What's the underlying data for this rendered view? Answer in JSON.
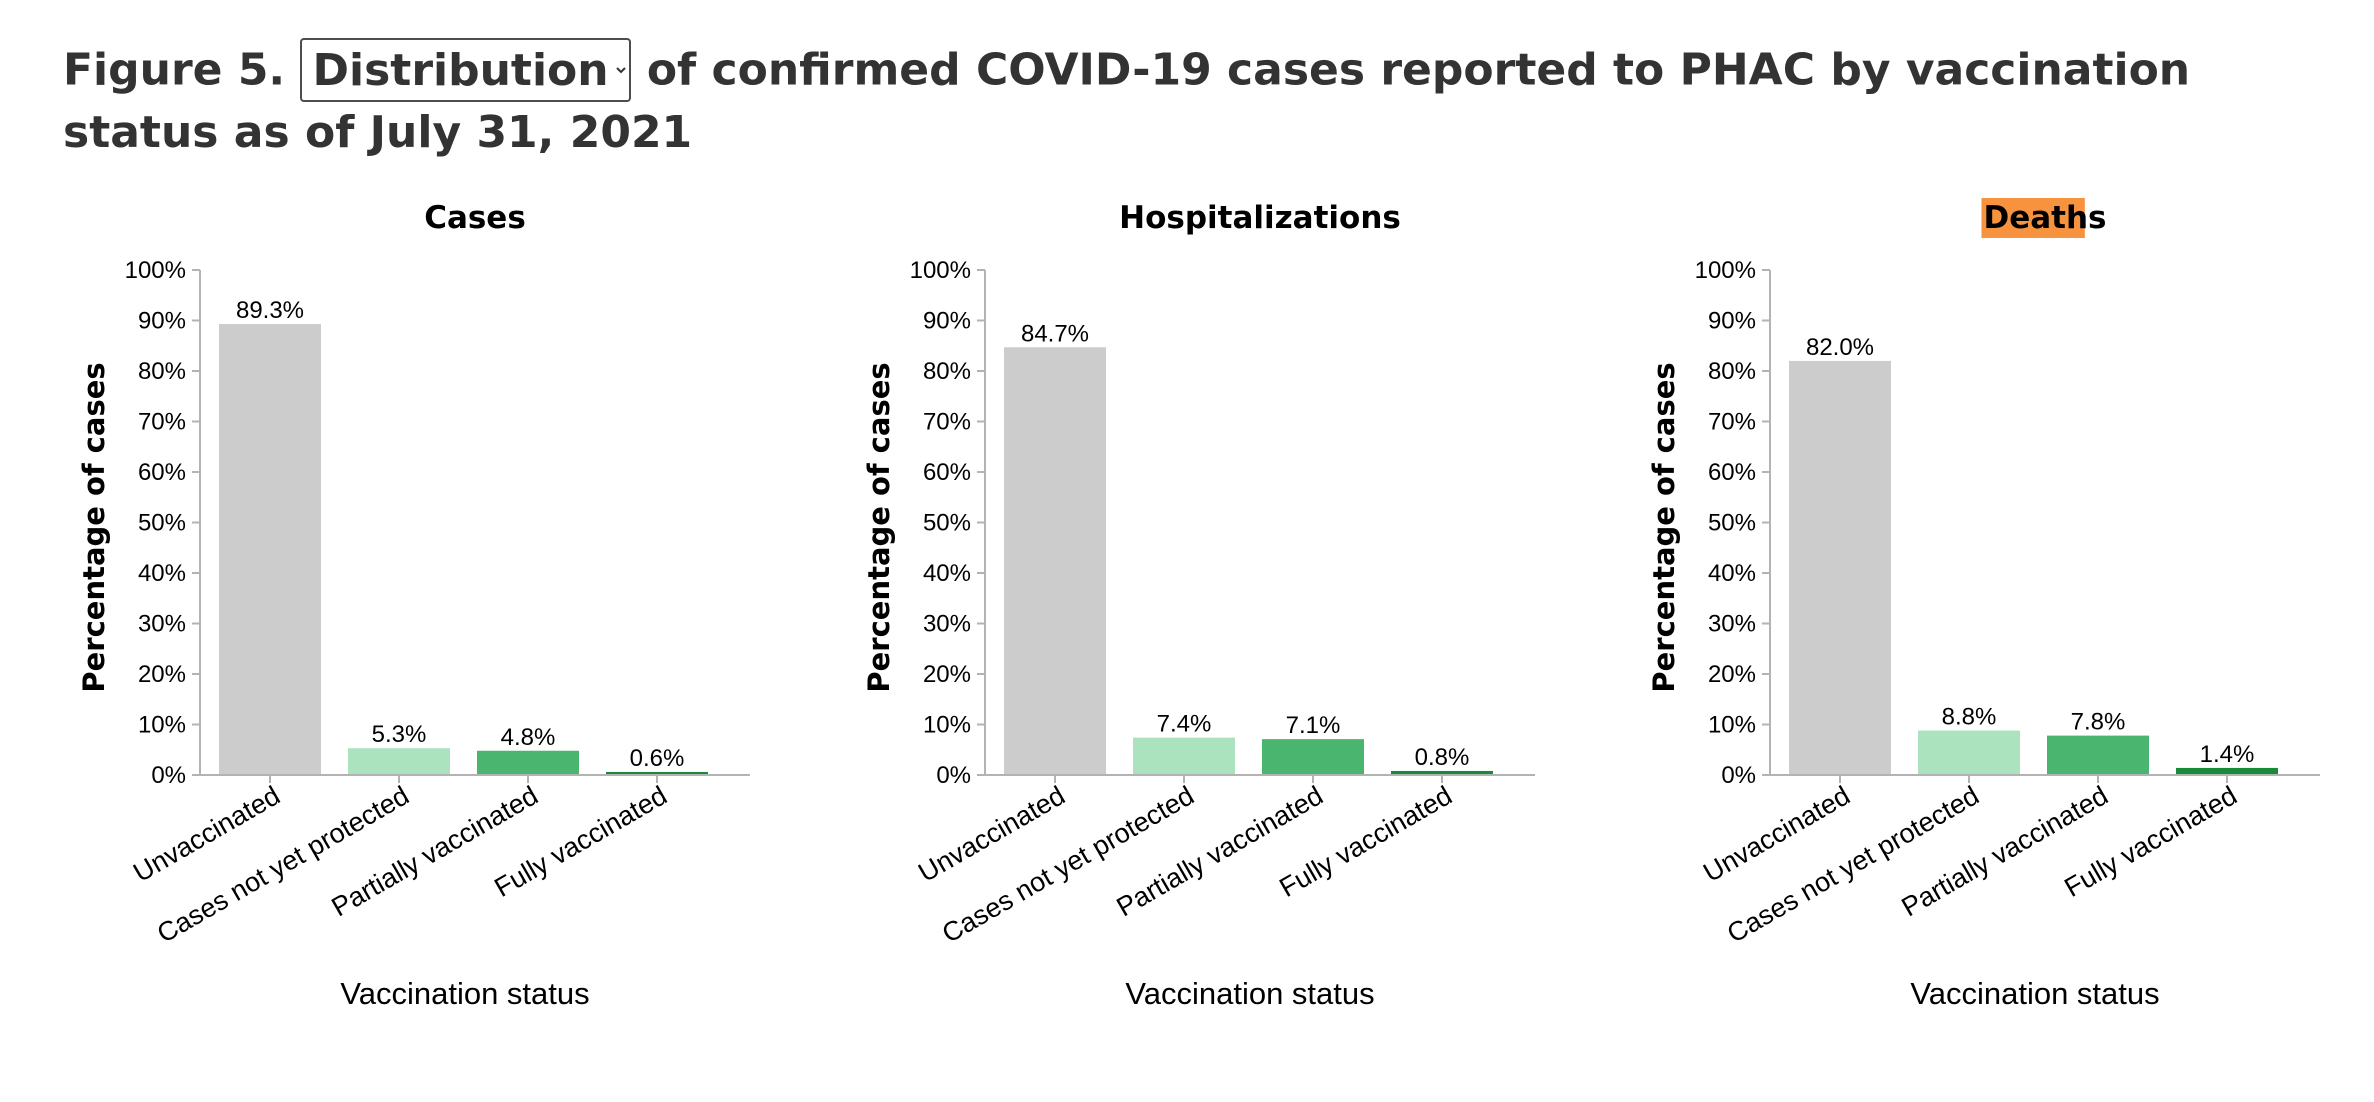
{
  "heading": {
    "prefix": "Figure 5.",
    "suffix": "of confirmed COVID-19 cases reported to PHAC by vaccination status as of July 31, 2021",
    "select": {
      "selected": "Distribution",
      "options": [
        "Distribution"
      ]
    }
  },
  "colors": {
    "Unvaccinated": "#cccccc",
    "Cases not yet protected": "#ace3bf",
    "Partially vaccinated": "#4ab56e",
    "Fully vaccinated": "#188a39",
    "highlight": "#f7923f",
    "axis": "#b3b3b3",
    "text": "#000000"
  },
  "chart_data": [
    {
      "type": "bar",
      "title": "Cases",
      "xlabel": "Vaccination status",
      "ylabel": "Percentage of cases",
      "ylim": [
        0,
        100
      ],
      "y_ticks": [
        "0%",
        "10%",
        "20%",
        "30%",
        "40%",
        "50%",
        "60%",
        "70%",
        "80%",
        "90%",
        "100%"
      ],
      "categories": [
        "Unvaccinated",
        "Cases not yet protected",
        "Partially vaccinated",
        "Fully vaccinated"
      ],
      "values": [
        89.3,
        5.3,
        4.8,
        0.6
      ],
      "labels": [
        "89.3%",
        "5.3%",
        "4.8%",
        "0.6%"
      ],
      "highlighted_title": false,
      "grid": false
    },
    {
      "type": "bar",
      "title": "Hospitalizations",
      "xlabel": "Vaccination status",
      "ylabel": "Percentage of cases",
      "ylim": [
        0,
        100
      ],
      "y_ticks": [
        "0%",
        "10%",
        "20%",
        "30%",
        "40%",
        "50%",
        "60%",
        "70%",
        "80%",
        "90%",
        "100%"
      ],
      "categories": [
        "Unvaccinated",
        "Cases not yet protected",
        "Partially vaccinated",
        "Fully vaccinated"
      ],
      "values": [
        84.7,
        7.4,
        7.1,
        0.8
      ],
      "labels": [
        "84.7%",
        "7.4%",
        "7.1%",
        "0.8%"
      ],
      "highlighted_title": false,
      "grid": false
    },
    {
      "type": "bar",
      "title": "Deaths",
      "xlabel": "Vaccination status",
      "ylabel": "Percentage of cases",
      "ylim": [
        0,
        100
      ],
      "y_ticks": [
        "0%",
        "10%",
        "20%",
        "30%",
        "40%",
        "50%",
        "60%",
        "70%",
        "80%",
        "90%",
        "100%"
      ],
      "categories": [
        "Unvaccinated",
        "Cases not yet protected",
        "Partially vaccinated",
        "Fully vaccinated"
      ],
      "values": [
        82.0,
        8.8,
        7.8,
        1.4
      ],
      "labels": [
        "82.0%",
        "8.8%",
        "7.8%",
        "1.4%"
      ],
      "highlighted_title": true,
      "grid": false
    }
  ]
}
